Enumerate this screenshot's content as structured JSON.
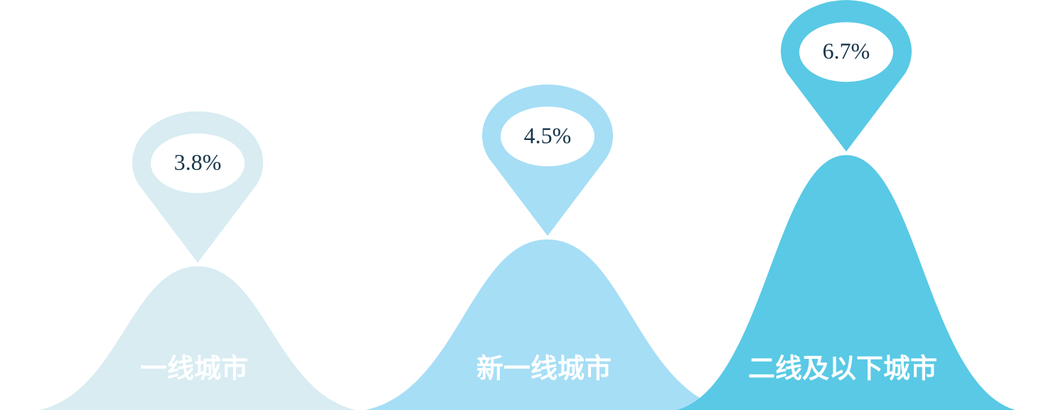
{
  "chart_data": {
    "type": "bell",
    "categories": [
      "一线城市",
      "新一线城市",
      "二线及以下城市"
    ],
    "values": [
      3.8,
      4.5,
      6.7
    ],
    "value_labels": [
      "3.8%",
      "4.5%",
      "6.7%"
    ],
    "colors": [
      "#d8ecf2",
      "#a6def6",
      "#59c9e5"
    ]
  }
}
